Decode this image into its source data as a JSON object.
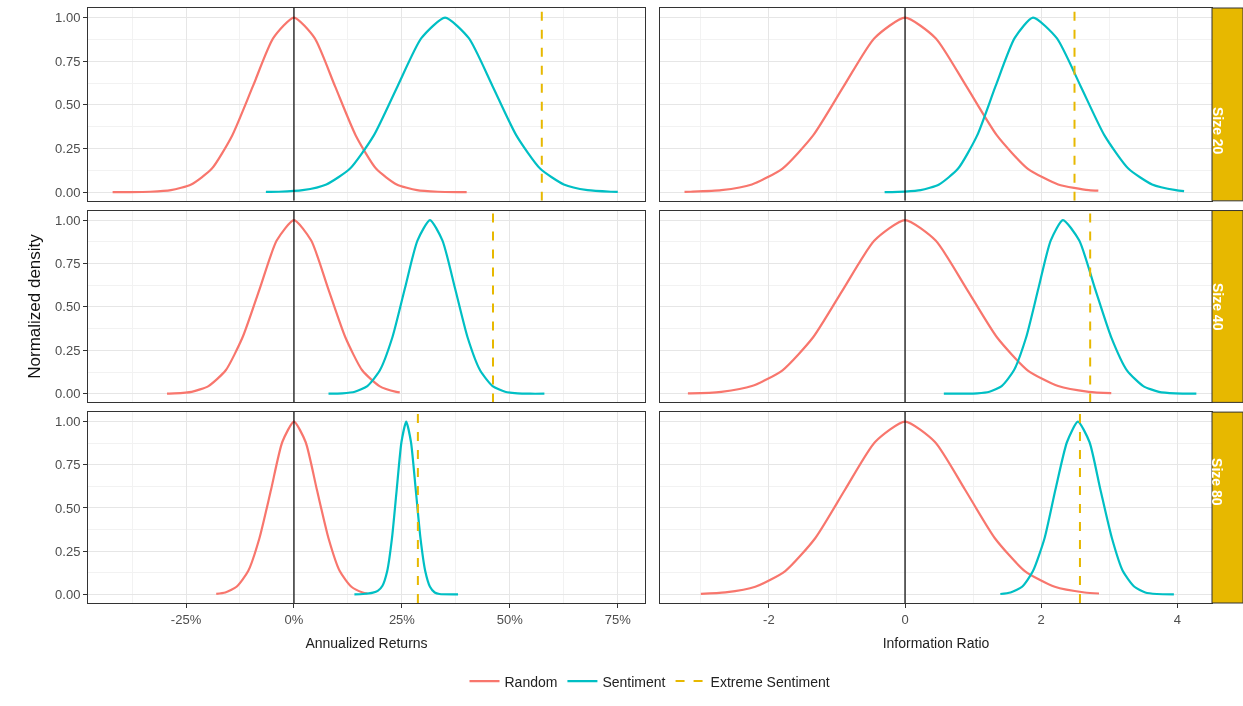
{
  "chart_data": [
    {
      "type": "line",
      "xlim": [
        -47.7,
        81.3
      ],
      "xticks": [
        {
          "value": -25,
          "label": null
        },
        {
          "value": 0,
          "label": null
        },
        {
          "value": 25,
          "label": null
        },
        {
          "value": 50,
          "label": null
        },
        {
          "value": 75,
          "label": null
        }
      ],
      "ylim": [
        -0.05,
        1.055
      ],
      "yticks": [
        {
          "value": 0,
          "label": "0.00"
        },
        {
          "value": 0.25,
          "label": "0.25"
        },
        {
          "value": 0.5,
          "label": "0.50"
        },
        {
          "value": 0.75,
          "label": "0.75"
        },
        {
          "value": 1,
          "label": "1.00"
        }
      ],
      "grid": true,
      "tick_labels": "y",
      "line_style": "solid",
      "legend": "bottom",
      "series": [
        {
          "name": "Random",
          "color": "#f8766d",
          "x": [
            -42,
            -38,
            -33.3,
            -28.5,
            -23.8,
            -19,
            -14.3,
            -9.5,
            -4.8,
            0,
            4.8,
            9.5,
            14.3,
            19,
            23.8,
            28.5,
            33.3,
            38,
            40
          ],
          "values": [
            0.0,
            0.0,
            0.002,
            0.011,
            0.044,
            0.135,
            0.325,
            0.607,
            0.882,
            1,
            0.882,
            0.607,
            0.325,
            0.135,
            0.044,
            0.011,
            0.002,
            0.0,
            0.0
          ]
        },
        {
          "name": "Sentiment",
          "color": "#00bfc4",
          "x": [
            -6.5,
            -3.5,
            2,
            7.5,
            13,
            18.5,
            24,
            29.5,
            35,
            40.5,
            46,
            51.5,
            57,
            62.5,
            68,
            73.5,
            75
          ],
          "values": [
            0.001,
            0.002,
            0.011,
            0.044,
            0.135,
            0.325,
            0.607,
            0.882,
            1,
            0.882,
            0.607,
            0.325,
            0.135,
            0.044,
            0.011,
            0.002,
            0.001
          ]
        }
      ],
      "ref_lines": [
        {
          "axis": "x",
          "value": 0,
          "color": "#000000"
        },
        {
          "axis": "x",
          "value": 57.4,
          "label": "Extreme Sentiment",
          "color": "#e7b800",
          "line_style": "dashed"
        }
      ]
    },
    {
      "type": "line",
      "xlim": [
        -3.6,
        4.51
      ],
      "xticks": [
        {
          "value": -2,
          "label": null
        },
        {
          "value": 0,
          "label": null
        },
        {
          "value": 2,
          "label": null
        },
        {
          "value": 4,
          "label": null
        }
      ],
      "ylim": [
        -0.05,
        1.055
      ],
      "yticks": [
        {
          "value": 0,
          "label": null
        },
        {
          "value": 0.25,
          "label": null
        },
        {
          "value": 0.5,
          "label": null
        },
        {
          "value": 0.75,
          "label": null
        },
        {
          "value": 1,
          "label": null
        }
      ],
      "grid": true,
      "tick_labels": false,
      "line_style": "solid",
      "annotations": [
        "Size 20"
      ],
      "series": [
        {
          "name": "Random",
          "color": "#f8766d",
          "x": [
            -3.24,
            -3.15,
            -2.7,
            -2.25,
            -1.8,
            -1.35,
            -0.9,
            -0.45,
            0,
            0.45,
            0.9,
            1.35,
            1.8,
            2.25,
            2.7,
            2.84
          ],
          "values": [
            0.001,
            0.002,
            0.011,
            0.044,
            0.135,
            0.325,
            0.607,
            0.882,
            1,
            0.882,
            0.607,
            0.325,
            0.135,
            0.044,
            0.011,
            0.008
          ]
        },
        {
          "name": "Sentiment",
          "color": "#00bfc4",
          "x": [
            -0.3,
            0,
            0.23,
            0.5,
            0.78,
            1.06,
            1.33,
            1.61,
            1.88,
            2.23,
            2.58,
            2.93,
            3.28,
            3.63,
            3.98,
            4.1
          ],
          "values": [
            0.0,
            0.003,
            0.011,
            0.044,
            0.135,
            0.325,
            0.607,
            0.882,
            1,
            0.882,
            0.607,
            0.325,
            0.135,
            0.044,
            0.011,
            0.006
          ]
        }
      ],
      "ref_lines": [
        {
          "axis": "x",
          "value": 0,
          "color": "#000000"
        },
        {
          "axis": "x",
          "value": 2.49,
          "color": "#e7b800",
          "line_style": "dashed"
        }
      ]
    },
    {
      "type": "line",
      "ylabel": "Normalized density",
      "xlim": [
        -47.7,
        81.3
      ],
      "xticks": [
        {
          "value": -25,
          "label": null
        },
        {
          "value": 0,
          "label": null
        },
        {
          "value": 25,
          "label": null
        },
        {
          "value": 50,
          "label": null
        },
        {
          "value": 75,
          "label": null
        }
      ],
      "ylim": [
        -0.05,
        1.055
      ],
      "yticks": [
        {
          "value": 0,
          "label": "0.00"
        },
        {
          "value": 0.25,
          "label": "0.25"
        },
        {
          "value": 0.5,
          "label": "0.50"
        },
        {
          "value": 0.75,
          "label": "0.75"
        },
        {
          "value": 1,
          "label": "1.00"
        }
      ],
      "grid": true,
      "tick_labels": "y",
      "line_style": "solid",
      "series": [
        {
          "name": "Random",
          "color": "#f8766d",
          "x": [
            -29.4,
            -27.7,
            -23.7,
            -19.8,
            -15.8,
            -11.9,
            -7.9,
            -4,
            0,
            4,
            7.9,
            11.9,
            15.8,
            19.8,
            23.7,
            24.5
          ],
          "values": [
            0.001,
            0.002,
            0.011,
            0.044,
            0.135,
            0.325,
            0.607,
            0.882,
            1,
            0.882,
            0.607,
            0.325,
            0.135,
            0.044,
            0.011,
            0.008
          ]
        },
        {
          "name": "Sentiment",
          "color": "#00bfc4",
          "x": [
            8,
            11.2,
            14.1,
            17,
            19.9,
            22.8,
            25.7,
            28.6,
            31.5,
            34.4,
            37.3,
            40.2,
            43.1,
            46,
            48.9,
            51.8,
            54.7,
            58
          ],
          "values": [
            0.0,
            0.002,
            0.011,
            0.044,
            0.135,
            0.325,
            0.607,
            0.882,
            1,
            0.882,
            0.607,
            0.325,
            0.135,
            0.044,
            0.011,
            0.002,
            0.0,
            0.0
          ]
        }
      ],
      "ref_lines": [
        {
          "axis": "x",
          "value": 0,
          "color": "#000000"
        },
        {
          "axis": "x",
          "value": 46.1,
          "color": "#e7b800",
          "line_style": "dashed"
        }
      ]
    },
    {
      "type": "line",
      "xlim": [
        -3.6,
        4.51
      ],
      "xticks": [
        {
          "value": -2,
          "label": null
        },
        {
          "value": 0,
          "label": null
        },
        {
          "value": 2,
          "label": null
        },
        {
          "value": 4,
          "label": null
        }
      ],
      "ylim": [
        -0.05,
        1.055
      ],
      "yticks": [
        {
          "value": 0,
          "label": null
        },
        {
          "value": 0.25,
          "label": null
        },
        {
          "value": 0.5,
          "label": null
        },
        {
          "value": 0.75,
          "label": null
        },
        {
          "value": 1,
          "label": null
        }
      ],
      "grid": true,
      "tick_labels": false,
      "line_style": "solid",
      "annotations": [
        "Size 40"
      ],
      "series": [
        {
          "name": "Random",
          "color": "#f8766d",
          "x": [
            -3.19,
            -3.15,
            -2.7,
            -2.25,
            -1.8,
            -1.35,
            -0.9,
            -0.45,
            0,
            0.45,
            0.9,
            1.35,
            1.8,
            2.25,
            2.7,
            3.03
          ],
          "values": [
            0.002,
            0.002,
            0.011,
            0.044,
            0.135,
            0.325,
            0.607,
            0.882,
            1,
            0.882,
            0.607,
            0.325,
            0.135,
            0.044,
            0.011,
            0.003
          ]
        },
        {
          "name": "Sentiment",
          "color": "#00bfc4",
          "x": [
            0.57,
            1.06,
            1.24,
            1.42,
            1.6,
            1.78,
            1.96,
            2.14,
            2.32,
            2.56,
            2.79,
            3.03,
            3.26,
            3.5,
            3.73,
            3.97,
            4.28
          ],
          "values": [
            0.0,
            0.002,
            0.011,
            0.044,
            0.135,
            0.325,
            0.607,
            0.882,
            1,
            0.882,
            0.607,
            0.325,
            0.135,
            0.044,
            0.011,
            0.002,
            0.0
          ]
        }
      ],
      "ref_lines": [
        {
          "axis": "x",
          "value": 0,
          "color": "#000000"
        },
        {
          "axis": "x",
          "value": 2.72,
          "color": "#e7b800",
          "line_style": "dashed"
        }
      ]
    },
    {
      "type": "line",
      "xlabel": "Annualized Returns",
      "xlim": [
        -47.7,
        81.3
      ],
      "xticks": [
        {
          "value": -25,
          "label": "-25%"
        },
        {
          "value": 0,
          "label": "0%"
        },
        {
          "value": 25,
          "label": "25%"
        },
        {
          "value": 50,
          "label": "50%"
        },
        {
          "value": 75,
          "label": "75%"
        }
      ],
      "ylim": [
        -0.05,
        1.055
      ],
      "yticks": [
        {
          "value": 0,
          "label": "0.00"
        },
        {
          "value": 0.25,
          "label": "0.25"
        },
        {
          "value": 0.5,
          "label": "0.50"
        },
        {
          "value": 0.75,
          "label": "0.75"
        },
        {
          "value": 1,
          "label": "1.00"
        }
      ],
      "grid": true,
      "line_style": "solid",
      "series": [
        {
          "name": "Random",
          "color": "#f8766d",
          "x": [
            -18,
            -15.9,
            -13.3,
            -10.6,
            -8,
            -5.3,
            -2.7,
            0,
            2.7,
            5.3,
            8,
            10.6,
            13.3,
            15.9,
            17
          ],
          "values": [
            0.003,
            0.011,
            0.044,
            0.135,
            0.325,
            0.607,
            0.882,
            1,
            0.882,
            0.607,
            0.325,
            0.135,
            0.044,
            0.011,
            0.005
          ]
        },
        {
          "name": "Sentiment",
          "color": "#00bfc4",
          "x": [
            14,
            16,
            18.3,
            19.4,
            20.5,
            21.6,
            22.7,
            23.8,
            24.9,
            26,
            27.1,
            28.2,
            29.3,
            30.4,
            31.5,
            32.6,
            33.7,
            38
          ],
          "values": [
            0.0,
            0.002,
            0.01,
            0.02,
            0.05,
            0.135,
            0.325,
            0.607,
            0.882,
            1,
            0.882,
            0.607,
            0.325,
            0.135,
            0.044,
            0.011,
            0.002,
            0.0
          ]
        }
      ],
      "ref_lines": [
        {
          "axis": "x",
          "value": 0,
          "color": "#000000"
        },
        {
          "axis": "x",
          "value": 28.7,
          "color": "#e7b800",
          "line_style": "dashed"
        }
      ]
    },
    {
      "type": "line",
      "xlabel": "Information Ratio",
      "xlim": [
        -3.6,
        4.51
      ],
      "xticks": [
        -2,
        0,
        2,
        4
      ],
      "ylim": [
        -0.05,
        1.055
      ],
      "yticks": [
        {
          "value": 0,
          "label": null
        },
        {
          "value": 0.25,
          "label": null
        },
        {
          "value": 0.5,
          "label": null
        },
        {
          "value": 0.75,
          "label": null
        },
        {
          "value": 1,
          "label": null
        }
      ],
      "grid": true,
      "tick_labels": "x",
      "line_style": "solid",
      "annotations": [
        "Size 80"
      ],
      "series": [
        {
          "name": "Random",
          "color": "#f8766d",
          "x": [
            -3.0,
            -2.64,
            -2.2,
            -1.76,
            -1.32,
            -0.88,
            -0.44,
            0,
            0.44,
            0.88,
            1.32,
            1.76,
            2.2,
            2.64,
            2.85
          ],
          "values": [
            0.003,
            0.011,
            0.044,
            0.135,
            0.325,
            0.607,
            0.882,
            1,
            0.882,
            0.607,
            0.325,
            0.135,
            0.044,
            0.011,
            0.005
          ]
        },
        {
          "name": "Sentiment",
          "color": "#00bfc4",
          "x": [
            1.4,
            1.55,
            1.72,
            1.88,
            2.05,
            2.21,
            2.38,
            2.54,
            2.71,
            2.87,
            3.04,
            3.2,
            3.37,
            3.53,
            3.7,
            3.95
          ],
          "values": [
            0.002,
            0.011,
            0.044,
            0.135,
            0.325,
            0.607,
            0.882,
            1,
            0.882,
            0.607,
            0.325,
            0.135,
            0.044,
            0.011,
            0.002,
            0.0
          ]
        }
      ],
      "ref_lines": [
        {
          "axis": "x",
          "value": 0,
          "color": "#000000"
        },
        {
          "axis": "x",
          "value": 2.57,
          "color": "#e7b800",
          "line_style": "dashed"
        }
      ]
    }
  ]
}
